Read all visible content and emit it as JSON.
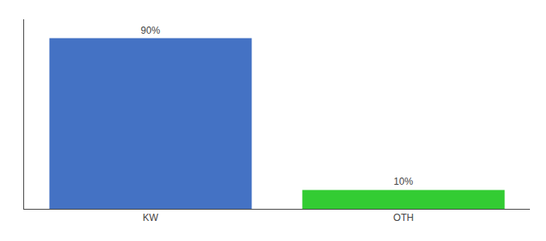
{
  "chart_data": {
    "type": "bar",
    "categories": [
      "KW",
      "OTH"
    ],
    "values": [
      90,
      10
    ],
    "colors": [
      "#4472C4",
      "#33CC33"
    ],
    "data_labels": true,
    "value_labels": [
      "90%",
      "10%"
    ],
    "ylim": [
      0,
      100
    ],
    "grid": false,
    "tick_labels": "x"
  }
}
